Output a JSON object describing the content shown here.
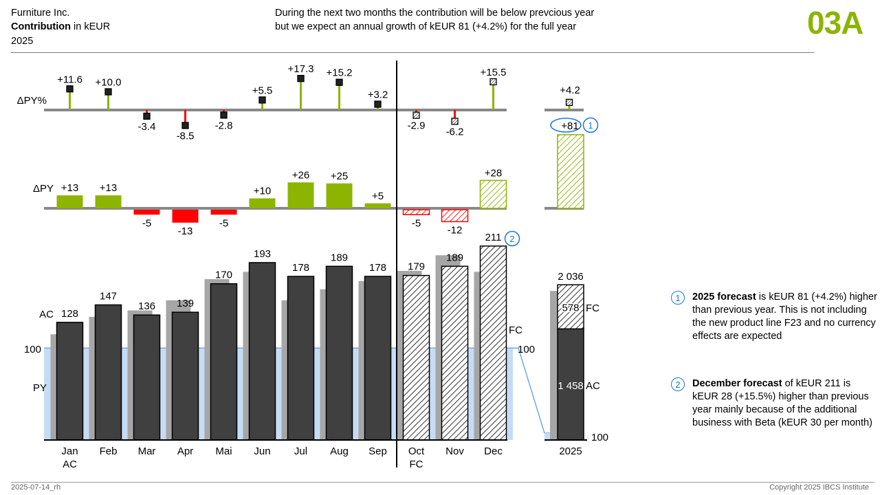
{
  "header": {
    "company": "Furniture Inc.",
    "measure_bold": "Contribution",
    "measure_rest": " in kEUR",
    "year": "2025",
    "message_line1": "During the next two months the contribution will be below prevcious year",
    "message_line2": "but we expect an annual growth of kEUR 81 (+4.2%) for the full year",
    "page_code": "03A"
  },
  "footer": {
    "date": "2025-07-14_rh",
    "copyright": "Copyright 2025 IBCS Institute"
  },
  "colors": {
    "ac": "#404040",
    "py": "#a6a6a6",
    "positive": "#8cb400",
    "negative": "#ff0000",
    "highlight": "#1a73e8",
    "py_band": "#c5dcf5"
  },
  "chart_data": {
    "type": "bar",
    "categories": [
      "Jan",
      "Feb",
      "Mar",
      "Apr",
      "Mai",
      "Jun",
      "Jul",
      "Aug",
      "Sep",
      "Oct",
      "Nov",
      "Dec"
    ],
    "scenario": [
      "AC",
      "AC",
      "AC",
      "AC",
      "AC",
      "AC",
      "AC",
      "AC",
      "AC",
      "FC",
      "FC",
      "FC"
    ],
    "scenario_labels": {
      "actual": "AC",
      "forecast": "FC",
      "previous": "PY"
    },
    "series": [
      {
        "name": "AC",
        "values": [
          128,
          147,
          136,
          139,
          170,
          193,
          178,
          189,
          178,
          179,
          189,
          211
        ]
      },
      {
        "name": "PY",
        "values": [
          115,
          134,
          141,
          152,
          175,
          183,
          152,
          164,
          173,
          184,
          201,
          183
        ]
      }
    ],
    "delta_py": {
      "label": "ΔPY",
      "values": [
        13,
        13,
        -5,
        -13,
        -5,
        10,
        26,
        25,
        5,
        -5,
        -12,
        28
      ],
      "value_labels": [
        "+13",
        "+13",
        "-5",
        "-13",
        "-5",
        "+10",
        "+26",
        "+25",
        "+5",
        "-5",
        "-12",
        "+28"
      ],
      "total": 81
    },
    "delta_py_pct": {
      "label": "ΔPY%",
      "values": [
        11.6,
        10.0,
        -3.4,
        -8.5,
        -2.8,
        5.5,
        17.3,
        15.2,
        3.2,
        -2.9,
        -6.2,
        15.5
      ],
      "value_labels": [
        "+11.6",
        "+10.0",
        "-3.4",
        "-8.5",
        "-2.8",
        "+5.5",
        "+17.3",
        "+15.2",
        "+3.2",
        "-2.9",
        "-6.2",
        "+15.5"
      ],
      "total": 4.2,
      "total_label": "+4.2"
    },
    "index_line": {
      "label": "100",
      "value": 100
    },
    "total": {
      "category": "2025",
      "total_label": "2 036",
      "ac_value": 1458,
      "ac_label": "1 458",
      "fc_value": 578,
      "fc_label": "578",
      "py_value": 1955,
      "delta_label": "+81",
      "index_label": "100"
    },
    "markers": [
      {
        "number": "1",
        "target": "total-delta"
      },
      {
        "number": "2",
        "target": "Dec"
      }
    ]
  },
  "notes": [
    {
      "number": "1",
      "bold": "2025 forecast",
      "text": " is kEUR 81 (+4.2%) higher than previous year. This is not including the new product line F23 and no currency effects are expected"
    },
    {
      "number": "2",
      "bold": "December forecast",
      "text": " of kEUR 211 is kEUR 28 (+15.5%) higher than previous year mainly because of the additional business with Beta (kEUR 30 per month)"
    }
  ]
}
